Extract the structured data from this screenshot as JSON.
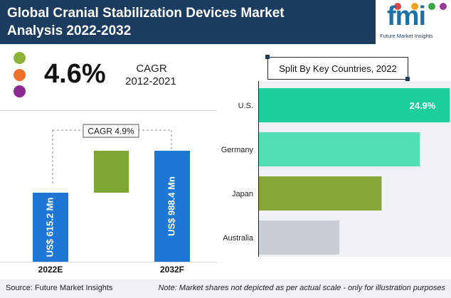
{
  "header": {
    "title_line1": "Global Cranial Stabilization Devices Market",
    "title_line2": "Analysis 2022-2032",
    "logo_text": "fmi",
    "logo_tagline": "Future Market Insights"
  },
  "summary": {
    "cagr_value": "4.6%",
    "cagr_label": "CAGR",
    "cagr_period": "2012-2021",
    "legend_colors": [
      "#8db33a",
      "#f26e2b",
      "#8b2a8f"
    ]
  },
  "chart_data": [
    {
      "type": "bar",
      "categories": [
        "2022E",
        "2032F"
      ],
      "values": [
        615.2,
        988.4
      ],
      "value_labels": [
        "US$ 615.2 Mn",
        "US$ 988.4 Mn"
      ],
      "increment_label": "CAGR 4.9%",
      "colors": {
        "bars": "#1e77d4",
        "increment": "#7ea633"
      },
      "ylim": [
        0,
        1100
      ]
    },
    {
      "type": "bar",
      "orientation": "horizontal",
      "title": "Split By Key Countries, 2022",
      "categories": [
        "U.S.",
        "Germany",
        "Japan",
        "Australia"
      ],
      "values": [
        24.9,
        21.0,
        16.0,
        10.5
      ],
      "data_labels": [
        "24.9%",
        "",
        "",
        ""
      ],
      "colors": [
        "#1dcf9c",
        "#50e0b4",
        "#86a63a",
        "#c9cdd4"
      ],
      "xlim": [
        0,
        27
      ]
    }
  ],
  "footer": {
    "source": "Source: Future Market Insights",
    "note": "Note: Market shares not depicted as per actual scale - only for illustration purposes"
  }
}
